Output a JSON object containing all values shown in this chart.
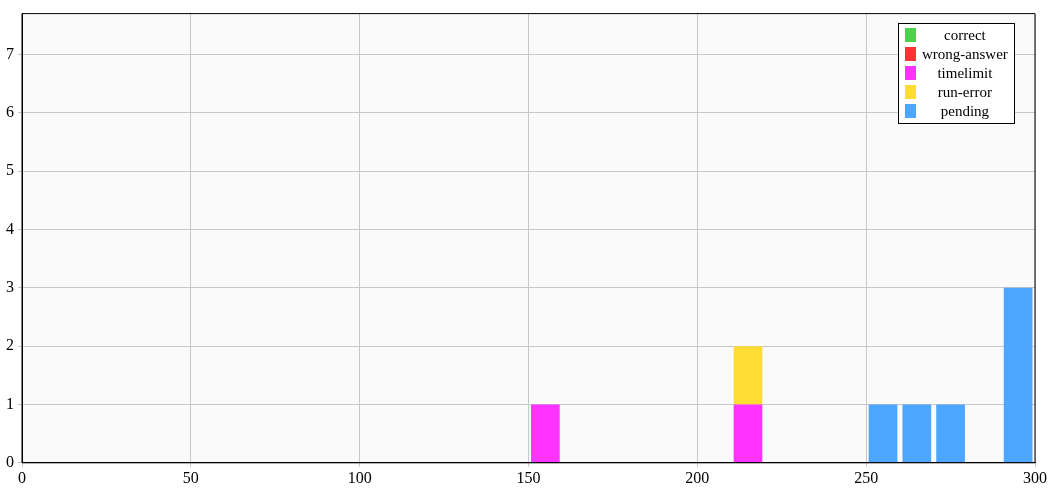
{
  "chart_data": {
    "type": "bar",
    "stacked": true,
    "x": [
      5,
      15,
      25,
      35,
      45,
      55,
      65,
      75,
      85,
      95,
      105,
      115,
      125,
      135,
      145,
      155,
      165,
      175,
      185,
      195,
      205,
      215,
      225,
      235,
      245,
      255,
      265,
      275,
      285,
      295
    ],
    "series": [
      {
        "name": "correct",
        "color": "#4cd24c",
        "values": [
          0,
          0,
          0,
          0,
          0,
          0,
          0,
          0,
          0,
          0,
          0,
          0,
          0,
          0,
          0,
          0,
          0,
          0,
          0,
          0,
          0,
          0,
          0,
          0,
          0,
          0,
          0,
          0,
          0,
          0
        ]
      },
      {
        "name": "wrong-answer",
        "color": "#ff3333",
        "values": [
          0,
          0,
          0,
          0,
          0,
          0,
          0,
          0,
          0,
          0,
          0,
          0,
          0,
          0,
          0,
          0,
          0,
          0,
          0,
          0,
          0,
          0,
          0,
          0,
          0,
          0,
          0,
          0,
          0,
          0
        ]
      },
      {
        "name": "timelimit",
        "color": "#ff33ff",
        "values": [
          0,
          0,
          0,
          0,
          0,
          0,
          0,
          0,
          0,
          0,
          0,
          0,
          0,
          0,
          0,
          1,
          0,
          0,
          0,
          0,
          0,
          1,
          0,
          0,
          0,
          0,
          0,
          0,
          0,
          0
        ]
      },
      {
        "name": "run-error",
        "color": "#ffdd33",
        "values": [
          0,
          0,
          0,
          0,
          0,
          0,
          0,
          0,
          0,
          0,
          0,
          0,
          0,
          0,
          0,
          0,
          0,
          0,
          0,
          0,
          0,
          1,
          0,
          0,
          0,
          0,
          0,
          0,
          0,
          0
        ]
      },
      {
        "name": "pending",
        "color": "#4da6ff",
        "values": [
          0,
          0,
          0,
          0,
          0,
          0,
          0,
          0,
          0,
          0,
          0,
          0,
          0,
          0,
          0,
          0,
          0,
          0,
          0,
          0,
          0,
          0,
          0,
          0,
          0,
          1,
          1,
          1,
          0,
          3
        ]
      }
    ],
    "xlim": [
      0,
      300
    ],
    "xticks": [
      0,
      50,
      100,
      150,
      200,
      250,
      300
    ],
    "ylim": [
      0,
      7.7
    ],
    "yticks": [
      0,
      1,
      2,
      3,
      4,
      5,
      6,
      7
    ],
    "grid": true,
    "legend": "top right"
  }
}
